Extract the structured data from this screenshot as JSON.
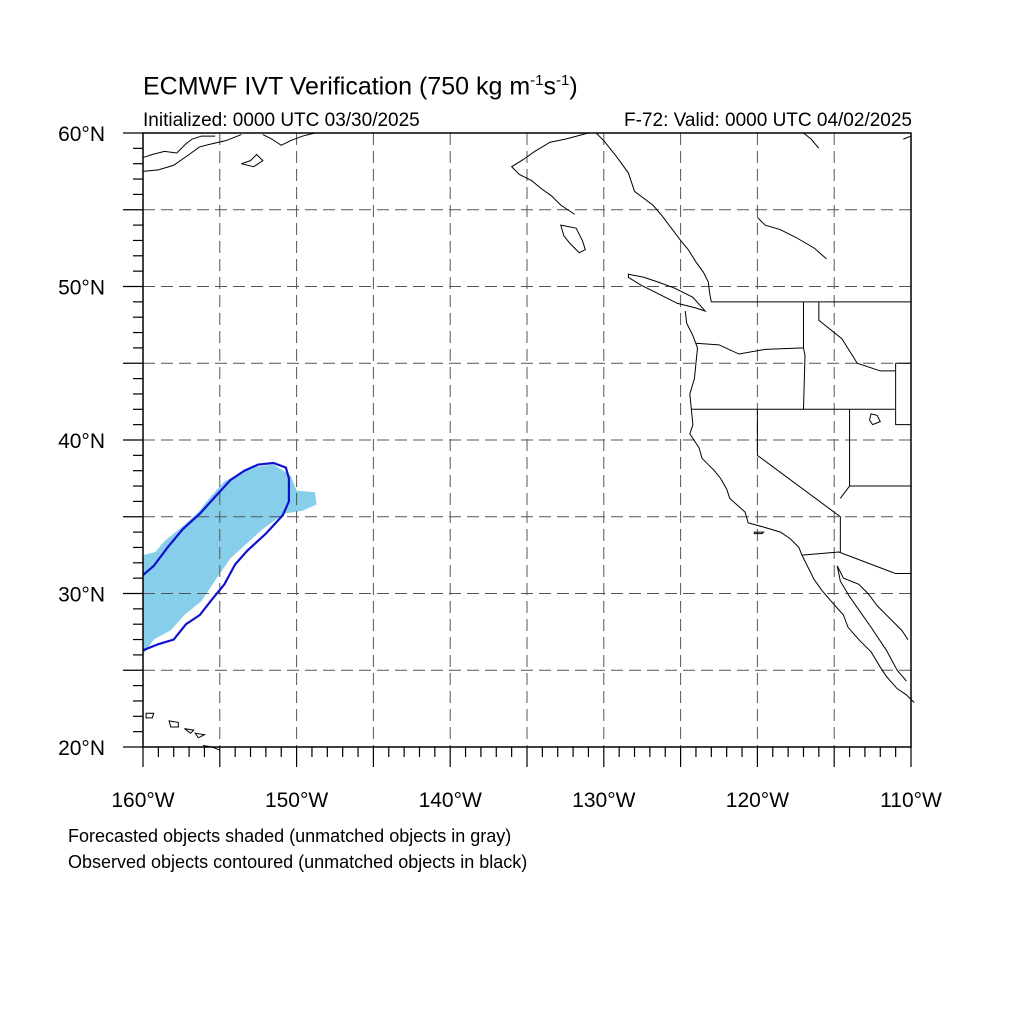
{
  "title": {
    "main": "ECMWF IVT Verification (750 kg m",
    "exp1": "-1",
    "mid": "s",
    "exp2": "-1",
    "end": ")"
  },
  "init_label": "Initialized: 0000 UTC 03/30/2025",
  "valid_label": "F-72: Valid: 0000 UTC 04/02/2025",
  "map": {
    "lon_range": [
      -160,
      -110
    ],
    "lat_range": [
      20,
      60
    ],
    "lat_labels": [
      {
        "lat": 60,
        "text": "60°N"
      },
      {
        "lat": 50,
        "text": "50°N"
      },
      {
        "lat": 40,
        "text": "40°N"
      },
      {
        "lat": 30,
        "text": "30°N"
      },
      {
        "lat": 20,
        "text": "20°N"
      }
    ],
    "lon_labels": [
      {
        "lon": -160,
        "text": "160°W"
      },
      {
        "lon": -150,
        "text": "150°W"
      },
      {
        "lon": -140,
        "text": "140°W"
      },
      {
        "lon": -130,
        "text": "130°W"
      },
      {
        "lon": -120,
        "text": "120°W"
      },
      {
        "lon": -110,
        "text": "110°W"
      }
    ],
    "grid_spacing_deg": 5,
    "forecast_object_color": "#87ceeb",
    "observed_object_color": "#1010d0",
    "coastline_color": "#000000"
  },
  "footnotes": [
    "Forecasted objects shaded (unmatched objects in gray)",
    "Observed objects contoured (unmatched objects in black)"
  ]
}
